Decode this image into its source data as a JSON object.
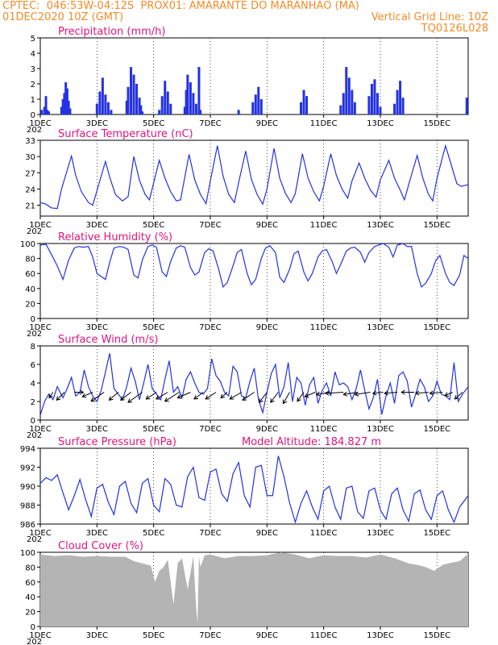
{
  "header": {
    "line1_left": "CPTEC:  046:53W-04:12S  PROX01: AMARANTE DO MARANHAO (MA)",
    "line2_left": "01DEC2020 10Z (GMT)",
    "line2_right": "Vertical Grid Line: 10Z",
    "line3_right": "TQ0126L028"
  },
  "colors": {
    "header": "#f28c28",
    "title": "#e0157c",
    "line": "#2432e0",
    "bars": "#2432e0",
    "cloud": "#b4b4b4"
  },
  "x_ticks": [
    "1DEC",
    "3DEC",
    "5DEC",
    "7DEC",
    "9DEC",
    "11DEC",
    "13DEC",
    "15DEC"
  ],
  "x_tick_days": [
    1,
    3,
    5,
    7,
    9,
    11,
    13,
    15
  ],
  "x_range_days": [
    1,
    16.1
  ],
  "year_fragment": "202",
  "chart_data": [
    {
      "type": "bar",
      "title": "Precipitation (mm/h)",
      "ylim": [
        0,
        5
      ],
      "yticks": [
        "0",
        "1",
        "2",
        "3",
        "4",
        "5"
      ],
      "ytick_values": [
        0,
        1,
        2,
        3,
        4,
        5
      ],
      "x_days": [
        1.05,
        1.15,
        1.2,
        1.25,
        1.3,
        1.75,
        1.8,
        1.85,
        1.9,
        1.95,
        2.0,
        2.05,
        3.0,
        3.1,
        3.2,
        3.3,
        3.4,
        3.5,
        4.05,
        4.1,
        4.2,
        4.3,
        4.4,
        4.5,
        4.55,
        4.6,
        5.2,
        5.3,
        5.4,
        5.5,
        5.6,
        6.1,
        6.15,
        6.2,
        6.3,
        6.4,
        6.5,
        6.6,
        6.65,
        8.0,
        8.5,
        8.6,
        8.7,
        8.8,
        10.2,
        10.3,
        10.4,
        11.6,
        11.7,
        11.8,
        11.9,
        12.0,
        12.1,
        12.6,
        12.7,
        12.8,
        12.9,
        13.0,
        13.5,
        13.6,
        13.7,
        13.8,
        16.05
      ],
      "values": [
        0.3,
        0.5,
        1.2,
        0.3,
        0.2,
        0.5,
        1.0,
        1.4,
        2.1,
        1.7,
        0.9,
        0.4,
        0.7,
        1.5,
        2.4,
        1.3,
        0.8,
        0.3,
        0.9,
        1.8,
        3.1,
        2.6,
        2.0,
        1.1,
        0.6,
        0.2,
        0.3,
        1.2,
        2.2,
        1.5,
        0.7,
        0.5,
        1.6,
        2.6,
        2.1,
        1.4,
        0.7,
        3.1,
        0.3,
        0.3,
        0.8,
        1.3,
        1.8,
        1.0,
        0.8,
        1.6,
        1.2,
        0.6,
        1.4,
        3.1,
        2.4,
        1.6,
        0.8,
        1.2,
        2.0,
        2.3,
        1.4,
        0.5,
        0.7,
        1.6,
        2.2,
        1.1,
        1.1
      ]
    },
    {
      "type": "line",
      "title": "Surface Temperature (nC)",
      "ylim": [
        19,
        33
      ],
      "yticks": [
        "21",
        "24",
        "27",
        "30",
        "33"
      ],
      "ytick_values": [
        21,
        24,
        27,
        30,
        33
      ],
      "x_days": [
        1.0,
        1.2,
        1.4,
        1.6,
        1.75,
        2.1,
        2.25,
        2.45,
        2.7,
        2.85,
        3.3,
        3.45,
        3.65,
        3.9,
        4.1,
        4.3,
        4.5,
        4.7,
        4.85,
        5.2,
        5.4,
        5.6,
        5.8,
        5.95,
        6.25,
        6.45,
        6.65,
        6.85,
        7.0,
        7.25,
        7.45,
        7.65,
        7.85,
        8.0,
        8.25,
        8.45,
        8.65,
        8.85,
        9.0,
        9.25,
        9.45,
        9.65,
        9.85,
        10.0,
        10.25,
        10.45,
        10.65,
        10.85,
        11.0,
        11.25,
        11.45,
        11.65,
        11.85,
        12.0,
        12.25,
        12.45,
        12.65,
        12.85,
        13.0,
        13.3,
        13.5,
        13.7,
        13.85,
        14.0,
        14.3,
        14.5,
        14.7,
        14.85,
        15.0,
        15.3,
        15.5,
        15.7,
        15.85,
        16.1
      ],
      "values": [
        21.5,
        21.2,
        20.5,
        20.4,
        24.0,
        30.1,
        26.5,
        23.5,
        21.5,
        21.0,
        29.1,
        26.2,
        23.0,
        21.8,
        22.6,
        30.0,
        25.6,
        23.0,
        22.0,
        29.3,
        26.0,
        23.5,
        21.8,
        22.0,
        30.4,
        25.7,
        23.0,
        21.3,
        25.5,
        32.0,
        26.4,
        23.0,
        21.5,
        25.2,
        31.0,
        25.8,
        23.0,
        21.2,
        24.0,
        31.5,
        26.0,
        23.2,
        21.5,
        23.2,
        30.5,
        26.0,
        23.5,
        21.8,
        24.5,
        30.5,
        26.5,
        24.0,
        22.3,
        25.5,
        28.8,
        26.0,
        23.8,
        22.5,
        25.7,
        29.3,
        26.0,
        23.8,
        22.0,
        24.8,
        30.2,
        26.0,
        23.0,
        21.8,
        26.0,
        32.0,
        28.5,
        25.0,
        24.5,
        24.8
      ]
    },
    {
      "type": "line",
      "title": "Relative Humidity (%)",
      "ylim": [
        0,
        100
      ],
      "yticks": [
        "0",
        "20",
        "40",
        "60",
        "80",
        "100"
      ],
      "ytick_values": [
        0,
        20,
        40,
        60,
        80,
        100
      ],
      "x_days": [
        1.0,
        1.2,
        1.4,
        1.6,
        1.8,
        2.0,
        2.2,
        2.35,
        2.5,
        2.7,
        2.85,
        3.0,
        3.3,
        3.45,
        3.6,
        3.8,
        3.95,
        4.1,
        4.3,
        4.45,
        4.6,
        4.8,
        4.95,
        5.1,
        5.3,
        5.45,
        5.6,
        5.8,
        5.95,
        6.1,
        6.3,
        6.45,
        6.6,
        6.8,
        6.95,
        7.1,
        7.3,
        7.45,
        7.6,
        7.8,
        7.95,
        8.1,
        8.3,
        8.45,
        8.6,
        8.8,
        8.95,
        9.1,
        9.3,
        9.45,
        9.6,
        9.8,
        9.95,
        10.1,
        10.3,
        10.45,
        10.6,
        10.8,
        10.95,
        11.1,
        11.3,
        11.45,
        11.6,
        11.8,
        11.95,
        12.1,
        12.3,
        12.45,
        12.6,
        12.8,
        12.95,
        13.1,
        13.3,
        13.45,
        13.6,
        13.8,
        13.95,
        14.1,
        14.3,
        14.45,
        14.6,
        14.8,
        14.95,
        15.1,
        15.3,
        15.45,
        15.6,
        15.8,
        15.95,
        16.1
      ],
      "values": [
        98,
        99,
        85,
        70,
        52,
        78,
        94,
        96,
        95,
        96,
        82,
        60,
        52,
        75,
        94,
        96,
        95,
        92,
        58,
        54,
        78,
        96,
        98,
        95,
        62,
        56,
        76,
        94,
        97,
        95,
        68,
        58,
        62,
        88,
        93,
        90,
        65,
        42,
        48,
        70,
        88,
        92,
        60,
        45,
        52,
        80,
        94,
        97,
        88,
        55,
        48,
        66,
        86,
        90,
        62,
        50,
        60,
        82,
        90,
        92,
        76,
        60,
        72,
        90,
        94,
        95,
        88,
        75,
        88,
        96,
        98,
        100,
        95,
        82,
        98,
        100,
        96,
        96,
        60,
        42,
        47,
        60,
        77,
        84,
        60,
        48,
        44,
        58,
        84,
        80
      ]
    },
    {
      "type": "line",
      "title": "Surface Wind (m/s)",
      "ylim": [
        0,
        8
      ],
      "yticks": [
        "0",
        "2",
        "4",
        "6",
        "8"
      ],
      "ytick_values": [
        0,
        2,
        4,
        6,
        8
      ],
      "x_days": [
        1.0,
        1.15,
        1.3,
        1.45,
        1.6,
        1.8,
        1.95,
        2.1,
        2.25,
        2.4,
        2.55,
        2.7,
        2.85,
        3.0,
        3.15,
        3.3,
        3.45,
        3.6,
        3.75,
        3.9,
        4.05,
        4.2,
        4.35,
        4.5,
        4.65,
        4.8,
        4.95,
        5.1,
        5.25,
        5.4,
        5.55,
        5.7,
        5.85,
        6.0,
        6.15,
        6.3,
        6.45,
        6.6,
        6.75,
        6.9,
        7.05,
        7.2,
        7.35,
        7.5,
        7.65,
        7.8,
        7.95,
        8.1,
        8.25,
        8.4,
        8.55,
        8.7,
        8.85,
        9.0,
        9.15,
        9.3,
        9.45,
        9.6,
        9.75,
        9.9,
        10.05,
        10.2,
        10.35,
        10.5,
        10.65,
        10.8,
        10.95,
        11.1,
        11.25,
        11.4,
        11.55,
        11.7,
        11.85,
        12.0,
        12.15,
        12.3,
        12.45,
        12.6,
        12.75,
        12.9,
        13.05,
        13.2,
        13.35,
        13.5,
        13.65,
        13.8,
        13.95,
        14.1,
        14.25,
        14.4,
        14.55,
        14.7,
        14.85,
        15.0,
        15.15,
        15.3,
        15.45,
        15.6,
        15.75,
        15.9,
        16.1
      ],
      "values": [
        0.5,
        2.0,
        2.8,
        2.2,
        3.6,
        2.4,
        3.4,
        4.6,
        2.6,
        3.0,
        5.4,
        3.6,
        2.6,
        2.0,
        3.2,
        5.2,
        7.2,
        3.4,
        2.8,
        2.2,
        3.6,
        5.6,
        4.2,
        2.2,
        4.0,
        6.0,
        3.4,
        2.8,
        2.2,
        4.4,
        6.4,
        3.0,
        3.6,
        2.4,
        4.4,
        5.2,
        4.0,
        3.0,
        2.8,
        3.4,
        6.6,
        4.8,
        4.2,
        3.0,
        2.6,
        5.8,
        5.2,
        2.6,
        2.4,
        4.2,
        5.6,
        2.2,
        0.8,
        3.0,
        5.0,
        6.0,
        2.4,
        3.6,
        6.2,
        2.0,
        4.6,
        4.0,
        1.6,
        3.8,
        4.6,
        1.8,
        3.2,
        4.0,
        2.6,
        5.2,
        3.8,
        4.0,
        3.6,
        2.2,
        3.4,
        5.4,
        3.2,
        1.2,
        2.4,
        4.4,
        0.6,
        2.6,
        4.0,
        1.8,
        4.8,
        5.2,
        4.2,
        1.4,
        2.8,
        4.4,
        3.6,
        2.0,
        2.6,
        4.2,
        2.8,
        2.6,
        2.2,
        6.2,
        2.0,
        2.8,
        3.6
      ],
      "vectors_days": [
        1.45,
        1.85,
        2.2,
        2.85,
        3.25,
        3.75,
        4.2,
        4.6,
        5.1,
        5.5,
        5.9,
        6.3,
        6.75,
        7.2,
        7.6,
        8.1,
        8.55,
        9.0,
        9.4,
        9.8,
        10.3,
        10.7,
        11.2,
        11.7,
        12.2,
        12.65,
        13.1,
        13.6,
        14.2,
        14.7,
        15.2,
        15.55,
        15.9
      ],
      "vectors_dx": [
        -0.3,
        -0.6,
        0.7,
        -0.8,
        -1.0,
        -0.7,
        -0.8,
        -1.1,
        -0.8,
        -0.9,
        -1.1,
        -1.0,
        -0.7,
        -0.8,
        -0.5,
        -0.9,
        -0.9,
        -0.6,
        -0.6,
        -0.5,
        -0.5,
        -0.8,
        -1.0,
        -1.4,
        -1.1,
        -1.2,
        -0.8,
        -1.0,
        -1.0,
        -1.0,
        -1.0,
        -0.6,
        -0.6
      ],
      "vectors_dy": [
        0.5,
        0.7,
        0.0,
        0.4,
        0.8,
        0.7,
        0.7,
        0.9,
        0.6,
        0.6,
        0.8,
        0.5,
        0.6,
        0.6,
        0.5,
        0.6,
        0.7,
        0.9,
        0.9,
        1.0,
        0.8,
        0.4,
        0.2,
        0.1,
        0.2,
        0.2,
        0.1,
        0.1,
        0.0,
        0.1,
        0.1,
        0.3,
        0.6
      ]
    },
    {
      "type": "line",
      "title": "Surface Pressure (hPa)",
      "extra_label": "Model Altitude: 184.827 m",
      "ylim": [
        986,
        994
      ],
      "yticks": [
        "986",
        "988",
        "990",
        "992",
        "994"
      ],
      "ytick_values": [
        986,
        988,
        990,
        992,
        994
      ],
      "x_days": [
        1.0,
        1.2,
        1.4,
        1.6,
        1.8,
        2.0,
        2.2,
        2.4,
        2.6,
        2.8,
        3.0,
        3.2,
        3.4,
        3.6,
        3.8,
        4.0,
        4.2,
        4.4,
        4.6,
        4.8,
        5.0,
        5.2,
        5.4,
        5.6,
        5.8,
        6.0,
        6.2,
        6.4,
        6.6,
        6.8,
        7.0,
        7.2,
        7.4,
        7.6,
        7.8,
        8.0,
        8.2,
        8.4,
        8.6,
        8.8,
        9.0,
        9.2,
        9.4,
        9.6,
        9.8,
        10.0,
        10.2,
        10.4,
        10.6,
        10.8,
        11.0,
        11.2,
        11.4,
        11.6,
        11.8,
        12.0,
        12.2,
        12.4,
        12.6,
        12.8,
        13.0,
        13.2,
        13.4,
        13.6,
        13.8,
        14.0,
        14.2,
        14.4,
        14.6,
        14.8,
        15.0,
        15.2,
        15.4,
        15.6,
        15.8,
        16.1
      ],
      "values": [
        990.3,
        990.9,
        990.6,
        991.2,
        989.3,
        987.5,
        989.0,
        990.7,
        988.6,
        986.8,
        989.8,
        990.2,
        988.3,
        987.0,
        990.0,
        990.5,
        988.2,
        987.2,
        990.3,
        990.8,
        988.0,
        987.3,
        990.8,
        990.2,
        988.0,
        987.8,
        991.0,
        992.0,
        988.8,
        988.5,
        991.5,
        991.8,
        989.2,
        988.4,
        991.3,
        992.5,
        989.0,
        987.8,
        992.0,
        992.2,
        989.0,
        989.0,
        993.2,
        991.0,
        988.2,
        986.2,
        988.2,
        989.5,
        987.8,
        986.5,
        989.5,
        990.0,
        987.8,
        986.5,
        989.8,
        990.0,
        987.3,
        986.6,
        989.5,
        989.8,
        987.5,
        986.5,
        989.2,
        989.8,
        987.5,
        986.3,
        989.2,
        989.6,
        987.5,
        986.5,
        989.0,
        989.5,
        987.5,
        986.2,
        987.8,
        989.0
      ]
    },
    {
      "type": "area",
      "title": "Cloud Cover (%)",
      "ylim": [
        0,
        100
      ],
      "yticks": [
        "0",
        "20",
        "40",
        "60",
        "80",
        "100"
      ],
      "ytick_values": [
        0,
        20,
        40,
        60,
        80,
        100
      ],
      "x_days": [
        1.0,
        1.5,
        2.0,
        2.5,
        3.0,
        3.5,
        4.0,
        4.3,
        4.6,
        4.9,
        5.05,
        5.2,
        5.35,
        5.5,
        5.6,
        5.7,
        5.85,
        6.0,
        6.2,
        6.4,
        6.5,
        6.55,
        6.6,
        6.65,
        6.8,
        7.0,
        7.5,
        8.0,
        8.5,
        9.0,
        9.5,
        10.0,
        10.5,
        11.0,
        11.5,
        12.0,
        12.5,
        13.0,
        13.5,
        14.0,
        14.3,
        14.6,
        14.9,
        15.2,
        15.5,
        15.8,
        16.1
      ],
      "values": [
        97,
        95,
        96,
        94,
        95,
        94,
        94,
        88,
        85,
        82,
        60,
        75,
        80,
        90,
        60,
        30,
        85,
        92,
        50,
        95,
        25,
        5,
        95,
        80,
        96,
        97,
        92,
        95,
        95,
        96,
        100,
        97,
        92,
        96,
        95,
        95,
        93,
        97,
        92,
        85,
        83,
        80,
        75,
        83,
        86,
        88,
        98
      ]
    }
  ]
}
